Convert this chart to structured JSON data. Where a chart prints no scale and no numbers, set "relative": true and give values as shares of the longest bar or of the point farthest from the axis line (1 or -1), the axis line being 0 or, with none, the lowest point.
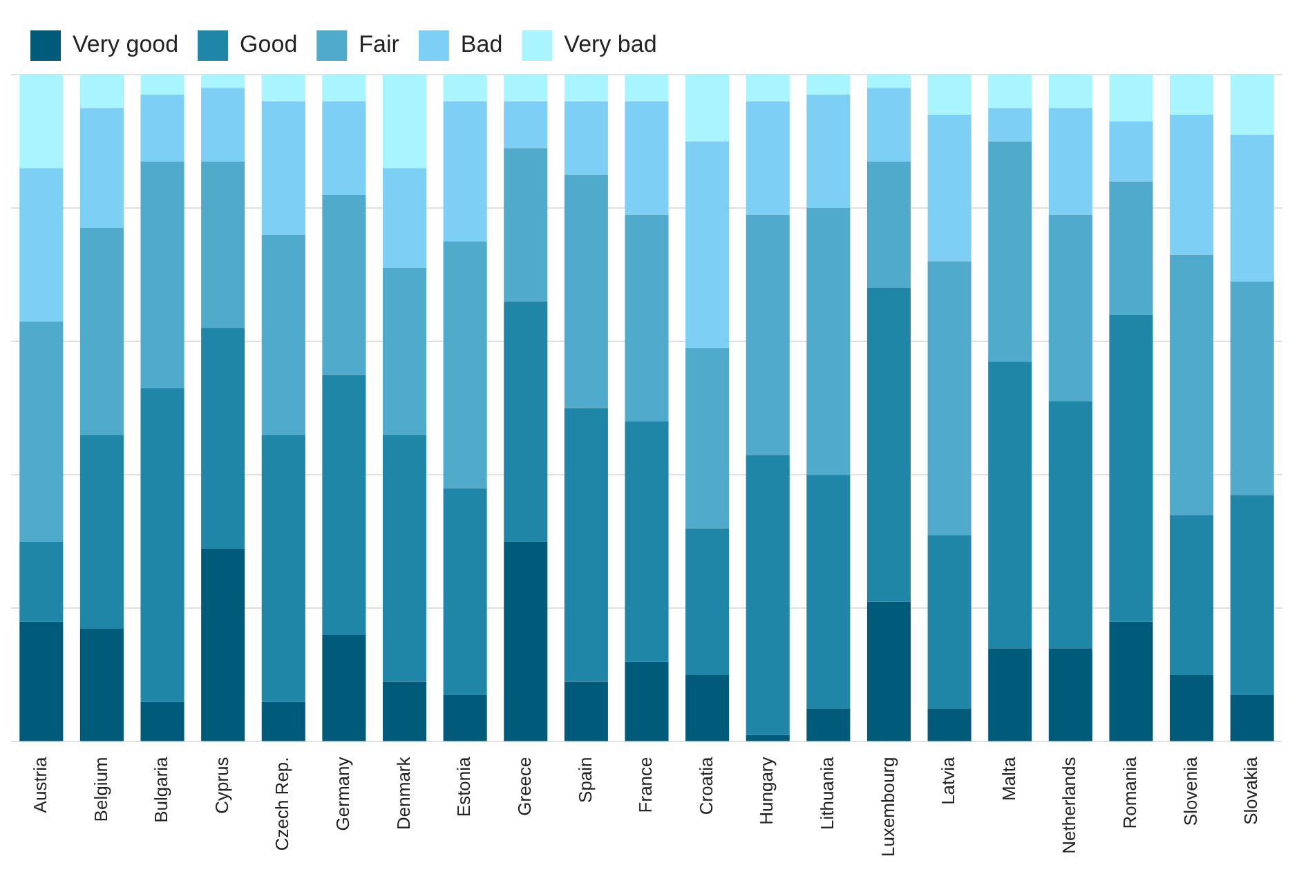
{
  "chart_data": {
    "type": "bar",
    "stacked": true,
    "relative": true,
    "grid": "y",
    "legend": "top left",
    "categories": [
      "Austria",
      "Belgium",
      "Bulgaria",
      "Cyprus",
      "Czech Rep.",
      "Germany",
      "Denmark",
      "Estonia",
      "Greece",
      "Spain",
      "France",
      "Croatia",
      "Hungary",
      "Lithuania",
      "Luxembourg",
      "Latvia",
      "Malta",
      "Netherlands",
      "Romania",
      "Slovenia",
      "Slovakia"
    ],
    "series": [
      {
        "name": "Very good",
        "color": "#005a7a",
        "values": [
          0.18,
          0.17,
          0.06,
          0.29,
          0.06,
          0.16,
          0.09,
          0.07,
          0.3,
          0.09,
          0.12,
          0.1,
          0.01,
          0.05,
          0.21,
          0.05,
          0.14,
          0.14,
          0.18,
          0.1,
          0.07
        ]
      },
      {
        "name": "Good",
        "color": "#1f86a8",
        "values": [
          0.12,
          0.29,
          0.47,
          0.33,
          0.4,
          0.39,
          0.37,
          0.31,
          0.36,
          0.41,
          0.36,
          0.22,
          0.42,
          0.35,
          0.47,
          0.26,
          0.43,
          0.37,
          0.46,
          0.24,
          0.3
        ]
      },
      {
        "name": "Fair",
        "color": "#4faacc",
        "values": [
          0.33,
          0.31,
          0.34,
          0.25,
          0.3,
          0.27,
          0.25,
          0.37,
          0.23,
          0.35,
          0.31,
          0.27,
          0.36,
          0.4,
          0.19,
          0.41,
          0.33,
          0.28,
          0.2,
          0.39,
          0.32
        ]
      },
      {
        "name": "Bad",
        "color": "#7dcff5",
        "values": [
          0.23,
          0.18,
          0.1,
          0.11,
          0.2,
          0.14,
          0.15,
          0.21,
          0.07,
          0.11,
          0.17,
          0.31,
          0.17,
          0.17,
          0.11,
          0.22,
          0.05,
          0.16,
          0.09,
          0.21,
          0.22
        ]
      },
      {
        "name": "Very bad",
        "color": "#a8f5ff",
        "values": [
          0.14,
          0.05,
          0.03,
          0.02,
          0.04,
          0.04,
          0.14,
          0.04,
          0.04,
          0.04,
          0.04,
          0.1,
          0.04,
          0.03,
          0.02,
          0.06,
          0.05,
          0.05,
          0.07,
          0.06,
          0.09
        ]
      }
    ]
  }
}
